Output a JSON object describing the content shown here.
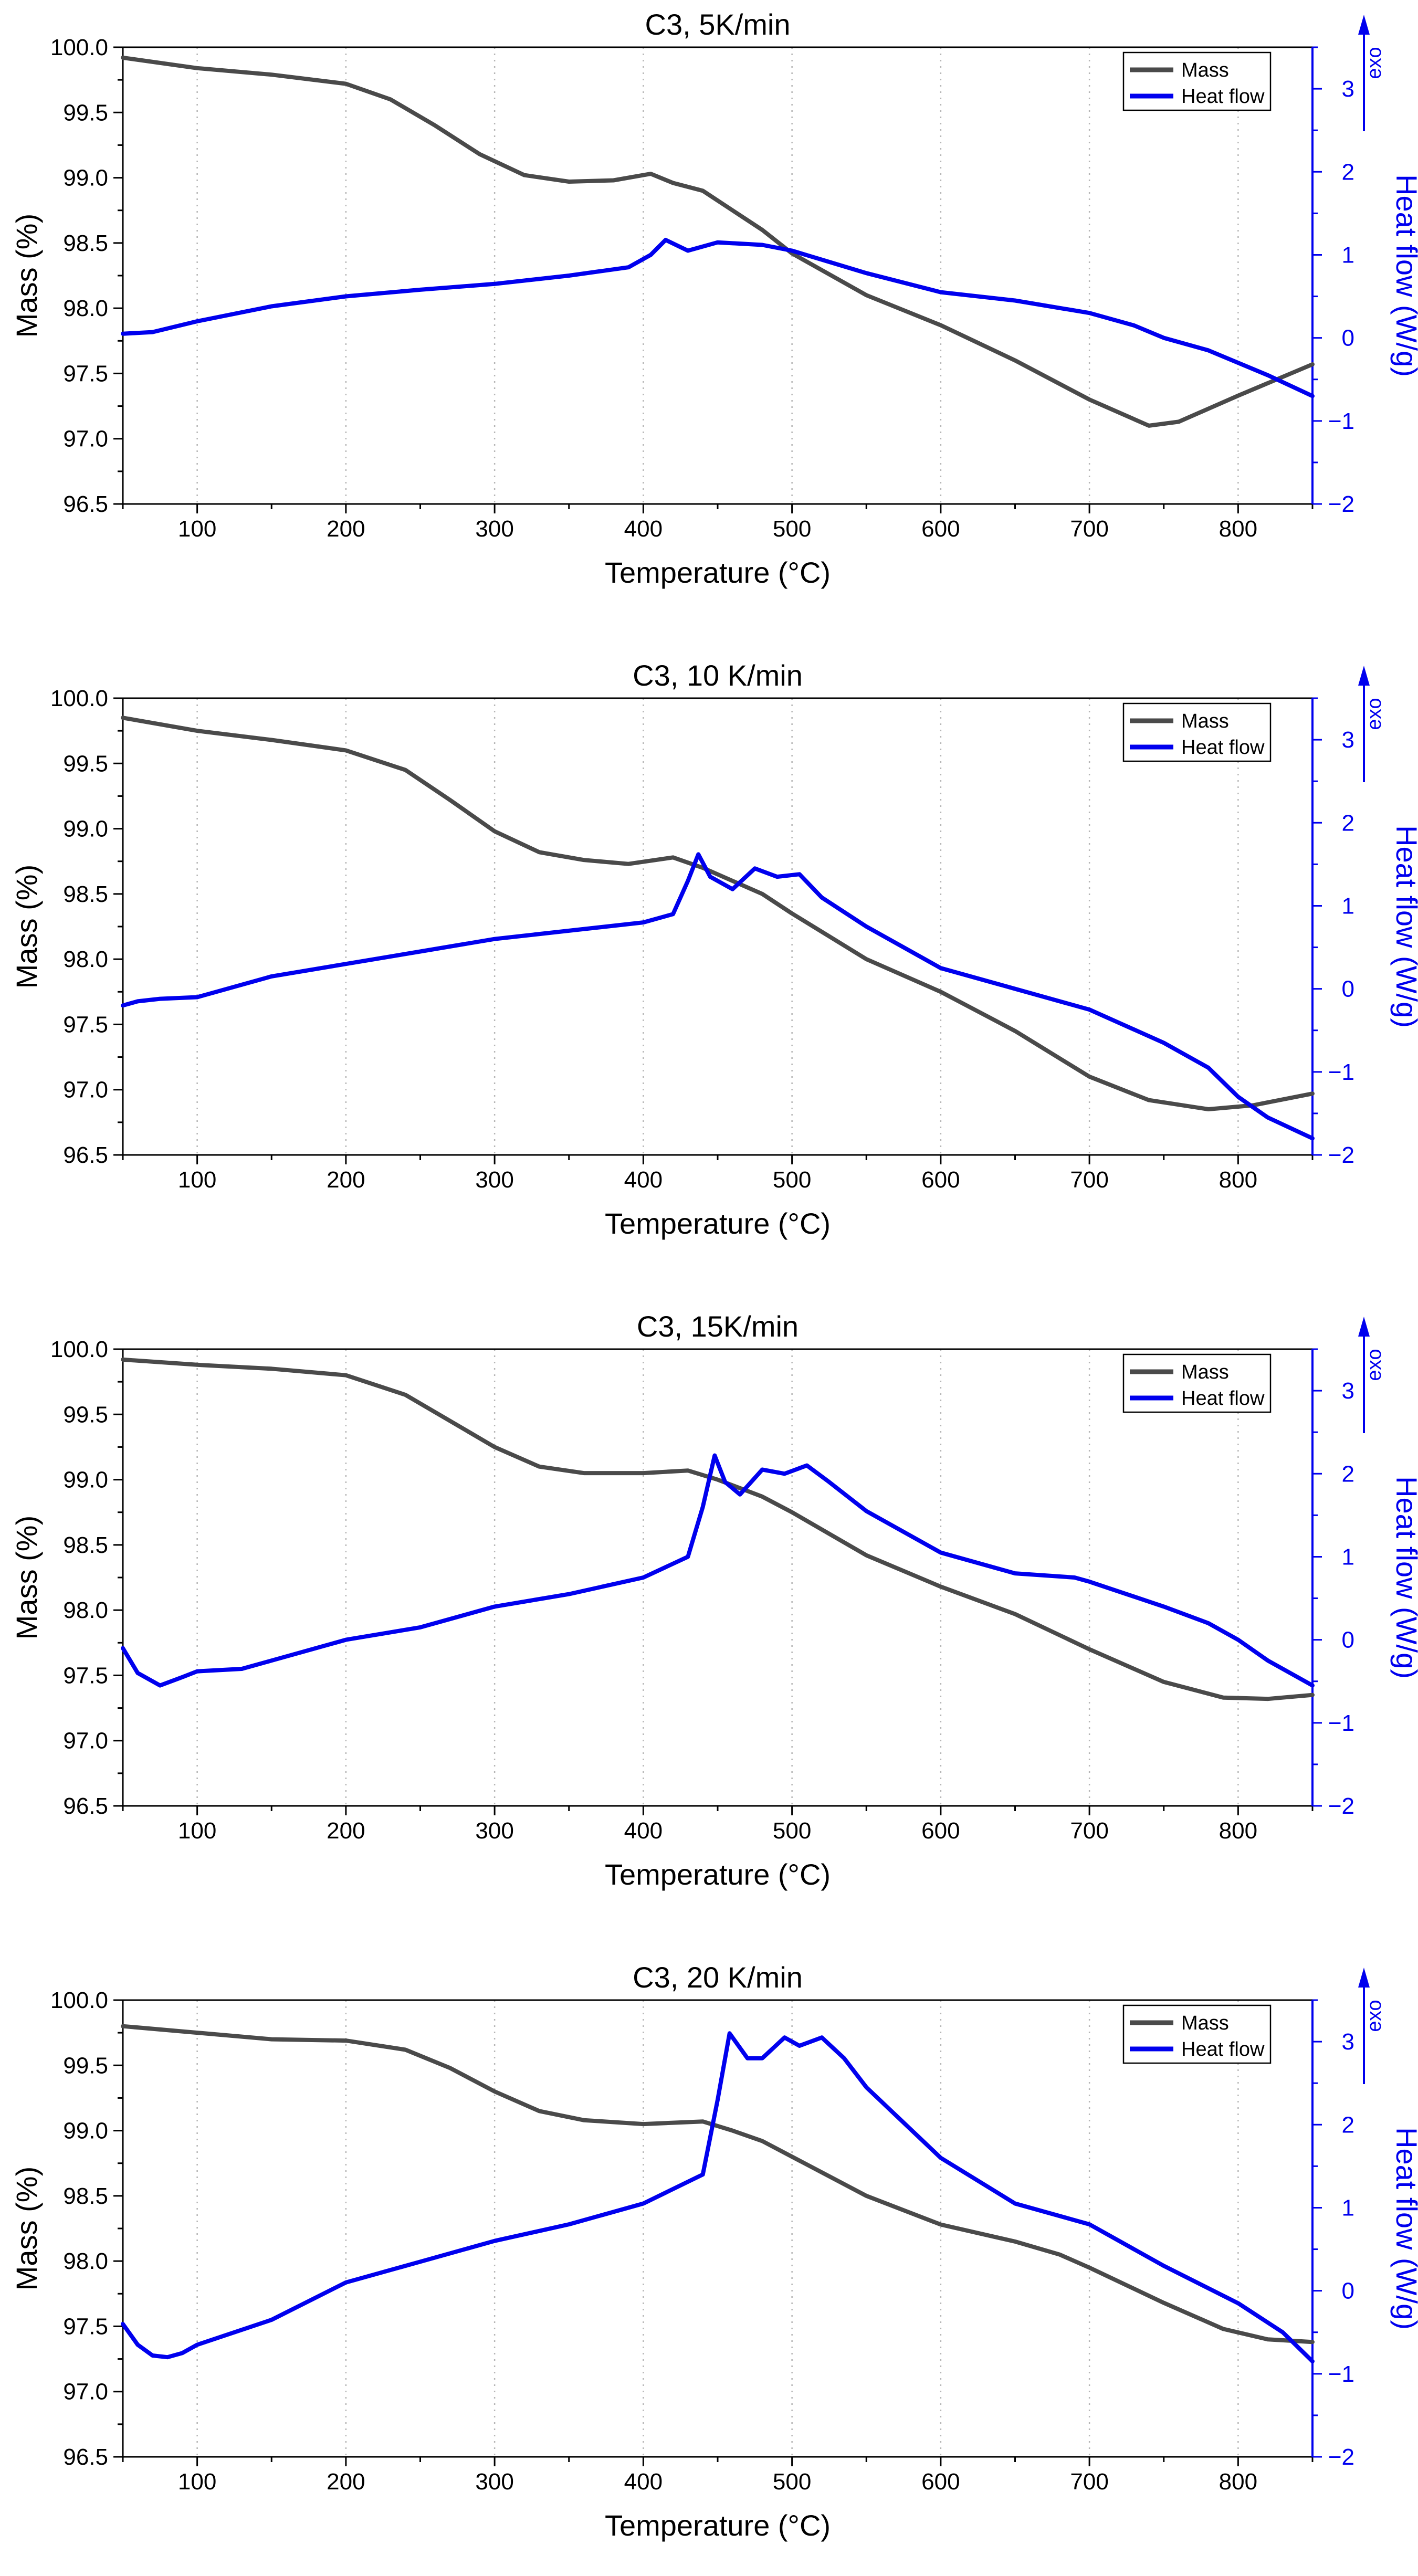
{
  "chart_data": [
    {
      "type": "line",
      "title": "C3, 5K/min",
      "xlabel": "Temperature (°C)",
      "ylabel": "Mass (%)",
      "y2label": "Heat flow (W/g)",
      "exo_label": "exo",
      "xlim": [
        50,
        850
      ],
      "ylim": [
        96.5,
        100.0
      ],
      "y2lim": [
        -2,
        3.5
      ],
      "xticks": [
        100,
        200,
        300,
        400,
        500,
        600,
        700,
        800
      ],
      "yticks": [
        "96.5",
        "97.0",
        "97.5",
        "98.0",
        "98.5",
        "99.0",
        "99.5",
        "100.0"
      ],
      "y2ticks": [
        "-2",
        "-1",
        "0",
        "1",
        "2",
        "3"
      ],
      "legend_position": "top-right",
      "series": [
        {
          "name": "Mass",
          "axis": "left",
          "color": "#4a4a4a",
          "x": [
            50,
            100,
            150,
            200,
            230,
            260,
            290,
            320,
            350,
            380,
            405,
            420,
            440,
            460,
            480,
            500,
            550,
            600,
            650,
            700,
            740,
            760,
            800,
            850
          ],
          "y": [
            99.92,
            99.84,
            99.79,
            99.72,
            99.6,
            99.4,
            99.18,
            99.02,
            98.97,
            98.98,
            99.03,
            98.96,
            98.9,
            98.75,
            98.6,
            98.42,
            98.1,
            97.87,
            97.6,
            97.3,
            97.1,
            97.13,
            97.33,
            97.57
          ]
        },
        {
          "name": "Heat flow",
          "axis": "right",
          "color": "#0000ee",
          "x": [
            50,
            70,
            100,
            150,
            200,
            250,
            300,
            350,
            390,
            405,
            415,
            430,
            450,
            480,
            500,
            550,
            600,
            650,
            700,
            730,
            750,
            780,
            820,
            850
          ],
          "y": [
            0.05,
            0.07,
            0.2,
            0.38,
            0.5,
            0.58,
            0.65,
            0.75,
            0.85,
            1.0,
            1.18,
            1.05,
            1.15,
            1.12,
            1.05,
            0.78,
            0.55,
            0.45,
            0.3,
            0.15,
            0.0,
            -0.15,
            -0.45,
            -0.7
          ]
        }
      ]
    },
    {
      "type": "line",
      "title": "C3, 10 K/min",
      "xlabel": "Temperature (°C)",
      "ylabel": "Mass (%)",
      "y2label": "Heat flow (W/g)",
      "exo_label": "exo",
      "xlim": [
        50,
        850
      ],
      "ylim": [
        96.5,
        100.0
      ],
      "y2lim": [
        -2,
        3.5
      ],
      "xticks": [
        100,
        200,
        300,
        400,
        500,
        600,
        700,
        800
      ],
      "yticks": [
        "96.5",
        "97.0",
        "97.5",
        "98.0",
        "98.5",
        "99.0",
        "99.5",
        "100.0"
      ],
      "y2ticks": [
        "-2",
        "-1",
        "0",
        "1",
        "2",
        "3"
      ],
      "legend_position": "top-right",
      "series": [
        {
          "name": "Mass",
          "axis": "left",
          "color": "#4a4a4a",
          "x": [
            50,
            100,
            150,
            200,
            240,
            270,
            300,
            330,
            360,
            390,
            420,
            440,
            460,
            480,
            500,
            550,
            600,
            650,
            700,
            740,
            780,
            810,
            850
          ],
          "y": [
            99.85,
            99.75,
            99.68,
            99.6,
            99.45,
            99.22,
            98.98,
            98.82,
            98.76,
            98.73,
            98.78,
            98.7,
            98.6,
            98.5,
            98.35,
            98.0,
            97.75,
            97.45,
            97.1,
            96.92,
            96.85,
            96.88,
            96.97
          ]
        },
        {
          "name": "Heat flow",
          "axis": "right",
          "color": "#0000ee",
          "x": [
            50,
            60,
            75,
            100,
            150,
            200,
            250,
            300,
            350,
            400,
            420,
            430,
            437,
            445,
            460,
            475,
            490,
            505,
            520,
            550,
            600,
            650,
            700,
            750,
            780,
            800,
            820,
            850
          ],
          "y": [
            -0.2,
            -0.15,
            -0.12,
            -0.1,
            0.15,
            0.3,
            0.45,
            0.6,
            0.7,
            0.8,
            0.9,
            1.3,
            1.62,
            1.35,
            1.2,
            1.45,
            1.35,
            1.38,
            1.1,
            0.75,
            0.25,
            0.0,
            -0.25,
            -0.65,
            -0.95,
            -1.3,
            -1.55,
            -1.8
          ]
        }
      ]
    },
    {
      "type": "line",
      "title": "C3, 15K/min",
      "xlabel": "Temperature (°C)",
      "ylabel": "Mass (%)",
      "y2label": "Heat flow (W/g)",
      "exo_label": "exo",
      "xlim": [
        50,
        850
      ],
      "ylim": [
        96.5,
        100.0
      ],
      "y2lim": [
        -2,
        3.5
      ],
      "xticks": [
        100,
        200,
        300,
        400,
        500,
        600,
        700,
        800
      ],
      "yticks": [
        "96.5",
        "97.0",
        "97.5",
        "98.0",
        "98.5",
        "99.0",
        "99.5",
        "100.0"
      ],
      "y2ticks": [
        "-2",
        "-1",
        "0",
        "1",
        "2",
        "3"
      ],
      "legend_position": "top-right",
      "series": [
        {
          "name": "Mass",
          "axis": "left",
          "color": "#4a4a4a",
          "x": [
            50,
            100,
            150,
            200,
            240,
            270,
            300,
            330,
            360,
            400,
            430,
            450,
            480,
            500,
            550,
            600,
            650,
            700,
            750,
            790,
            820,
            850
          ],
          "y": [
            99.92,
            99.88,
            99.85,
            99.8,
            99.65,
            99.45,
            99.25,
            99.1,
            99.05,
            99.05,
            99.07,
            99.0,
            98.87,
            98.75,
            98.42,
            98.18,
            97.97,
            97.7,
            97.45,
            97.33,
            97.32,
            97.35
          ]
        },
        {
          "name": "Heat flow",
          "axis": "right",
          "color": "#0000ee",
          "x": [
            50,
            60,
            75,
            90,
            100,
            130,
            150,
            200,
            250,
            300,
            350,
            400,
            430,
            440,
            448,
            455,
            465,
            480,
            495,
            510,
            525,
            550,
            600,
            650,
            690,
            700,
            750,
            780,
            800,
            820,
            850
          ],
          "y": [
            -0.1,
            -0.4,
            -0.55,
            -0.45,
            -0.38,
            -0.35,
            -0.25,
            0.0,
            0.15,
            0.4,
            0.55,
            0.75,
            1.0,
            1.6,
            2.22,
            1.9,
            1.75,
            2.05,
            2.0,
            2.1,
            1.9,
            1.55,
            1.05,
            0.8,
            0.75,
            0.7,
            0.4,
            0.2,
            0.0,
            -0.25,
            -0.55
          ]
        }
      ]
    },
    {
      "type": "line",
      "title": "C3, 20 K/min",
      "xlabel": "Temperature (°C)",
      "ylabel": "Mass (%)",
      "y2label": "Heat flow (W/g)",
      "exo_label": "exo",
      "xlim": [
        50,
        850
      ],
      "ylim": [
        96.5,
        100.0
      ],
      "y2lim": [
        -2,
        3.5
      ],
      "xticks": [
        100,
        200,
        300,
        400,
        500,
        600,
        700,
        800
      ],
      "yticks": [
        "96.5",
        "97.0",
        "97.5",
        "98.0",
        "98.5",
        "99.0",
        "99.5",
        "100.0"
      ],
      "y2ticks": [
        "-2",
        "-1",
        "0",
        "1",
        "2",
        "3"
      ],
      "legend_position": "top-right",
      "series": [
        {
          "name": "Mass",
          "axis": "left",
          "color": "#4a4a4a",
          "x": [
            50,
            100,
            150,
            200,
            240,
            270,
            300,
            330,
            360,
            400,
            440,
            460,
            480,
            500,
            550,
            600,
            650,
            680,
            700,
            750,
            790,
            820,
            850
          ],
          "y": [
            99.8,
            99.75,
            99.7,
            99.69,
            99.62,
            99.48,
            99.3,
            99.15,
            99.08,
            99.05,
            99.07,
            99.0,
            98.92,
            98.8,
            98.5,
            98.28,
            98.15,
            98.05,
            97.95,
            97.68,
            97.48,
            97.4,
            97.38
          ]
        },
        {
          "name": "Heat flow",
          "axis": "right",
          "color": "#0000ee",
          "x": [
            50,
            60,
            70,
            80,
            90,
            100,
            150,
            200,
            250,
            300,
            350,
            400,
            440,
            450,
            458,
            470,
            480,
            495,
            505,
            520,
            535,
            550,
            600,
            650,
            700,
            750,
            800,
            830,
            850
          ],
          "y": [
            -0.4,
            -0.65,
            -0.78,
            -0.8,
            -0.75,
            -0.65,
            -0.35,
            0.1,
            0.35,
            0.6,
            0.8,
            1.05,
            1.4,
            2.3,
            3.1,
            2.8,
            2.8,
            3.05,
            2.95,
            3.05,
            2.8,
            2.45,
            1.6,
            1.05,
            0.8,
            0.3,
            -0.15,
            -0.5,
            -0.85
          ]
        }
      ]
    }
  ]
}
